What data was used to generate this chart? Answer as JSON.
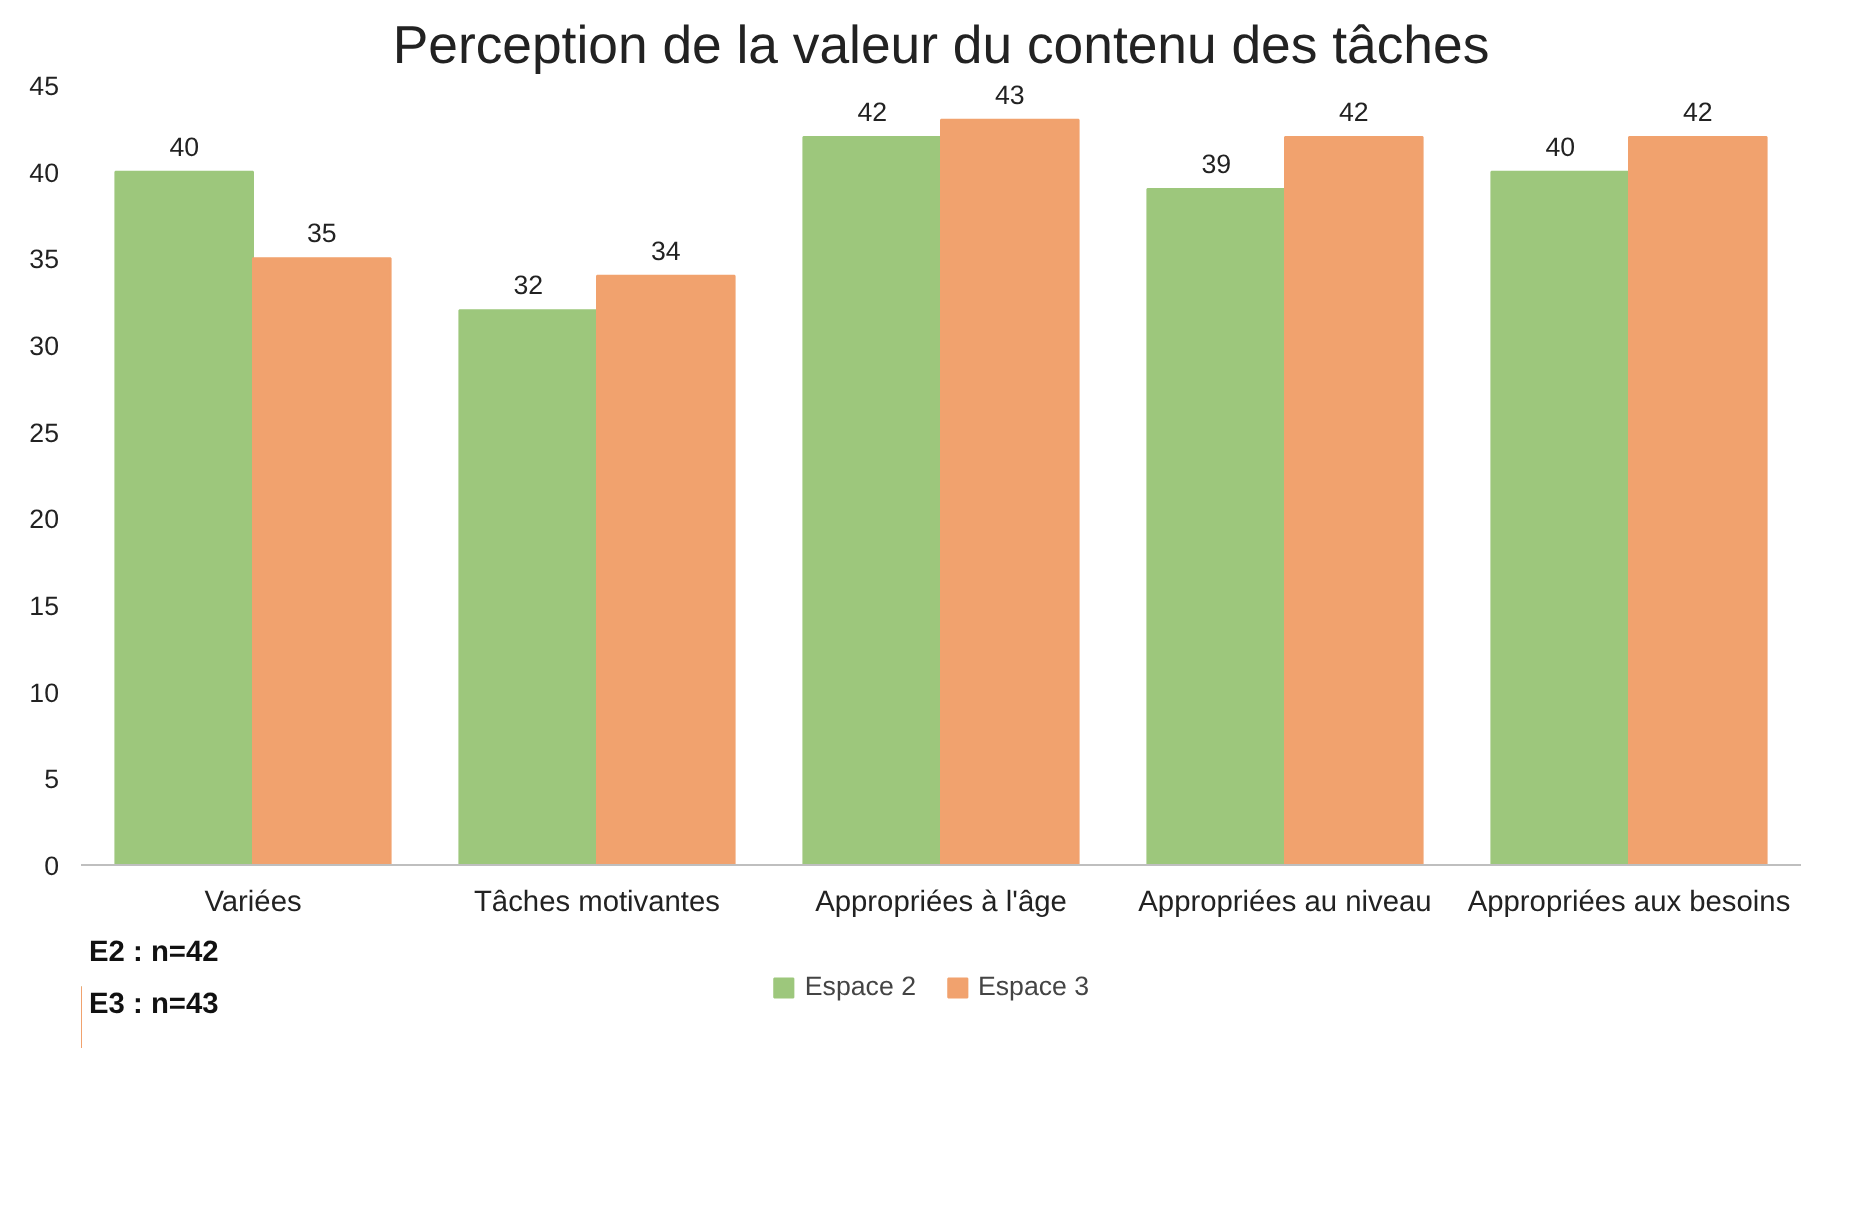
{
  "chart_data": {
    "type": "bar",
    "title": "Perception de la valeur du contenu des tâches",
    "categories": [
      "Variées",
      "Tâches motivantes",
      "Appropriées à l'âge",
      "Appropriées au niveau",
      "Appropriées aux besoins"
    ],
    "series": [
      {
        "name": "Espace 2",
        "color": "#9dc77c",
        "values": [
          40,
          32,
          42,
          39,
          40
        ]
      },
      {
        "name": "Espace 3",
        "color": "#f1a26e",
        "values": [
          35,
          34,
          43,
          42,
          42
        ]
      }
    ],
    "ylim": [
      0,
      45
    ],
    "yticks": [
      0,
      5,
      10,
      15,
      20,
      25,
      30,
      35,
      40,
      45
    ],
    "data_labels": true,
    "grid": false,
    "legend": "bottom",
    "annotations": [
      "E2 : n=42",
      "E3 : n=43"
    ]
  }
}
